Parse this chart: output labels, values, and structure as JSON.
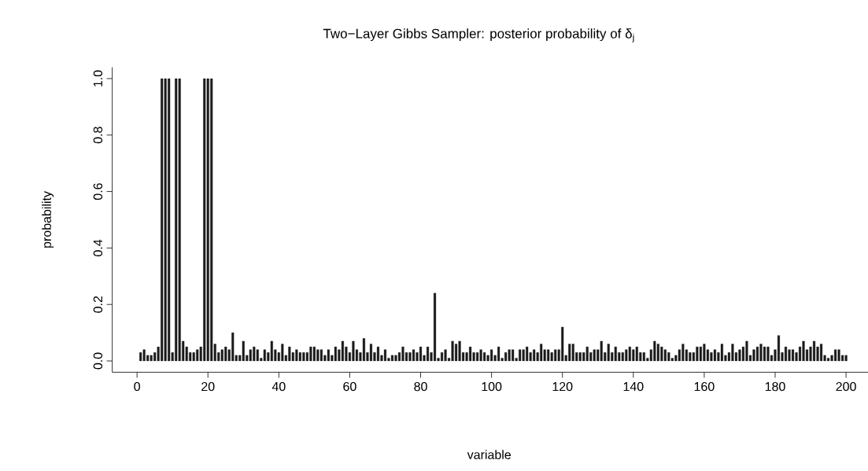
{
  "chart_data": {
    "type": "bar",
    "title": "Two−Layer Gibbs Sampler: posterior probability of  δ$_{j}$",
    "xlabel": "variable",
    "ylabel": "probability",
    "color": "#1a1a1a",
    "x": [
      1,
      2,
      3,
      4,
      5,
      6,
      7,
      8,
      9,
      10,
      11,
      12,
      13,
      14,
      15,
      16,
      17,
      18,
      19,
      20,
      21,
      22,
      23,
      24,
      25,
      26,
      27,
      28,
      29,
      30,
      31,
      32,
      33,
      34,
      35,
      36,
      37,
      38,
      39,
      40,
      41,
      42,
      43,
      44,
      45,
      46,
      47,
      48,
      49,
      50,
      51,
      52,
      53,
      54,
      55,
      56,
      57,
      58,
      59,
      60,
      61,
      62,
      63,
      64,
      65,
      66,
      67,
      68,
      69,
      70,
      71,
      72,
      73,
      74,
      75,
      76,
      77,
      78,
      79,
      80,
      81,
      82,
      83,
      84,
      85,
      86,
      87,
      88,
      89,
      90,
      91,
      92,
      93,
      94,
      95,
      96,
      97,
      98,
      99,
      100,
      101,
      102,
      103,
      104,
      105,
      106,
      107,
      108,
      109,
      110,
      111,
      112,
      113,
      114,
      115,
      116,
      117,
      118,
      119,
      120,
      121,
      122,
      123,
      124,
      125,
      126,
      127,
      128,
      129,
      130,
      131,
      132,
      133,
      134,
      135,
      136,
      137,
      138,
      139,
      140,
      141,
      142,
      143,
      144,
      145,
      146,
      147,
      148,
      149,
      150,
      151,
      152,
      153,
      154,
      155,
      156,
      157,
      158,
      159,
      160,
      161,
      162,
      163,
      164,
      165,
      166,
      167,
      168,
      169,
      170,
      171,
      172,
      173,
      174,
      175,
      176,
      177,
      178,
      179,
      180,
      181,
      182,
      183,
      184,
      185,
      186,
      187,
      188,
      189,
      190,
      191,
      192,
      193,
      194,
      195,
      196,
      197,
      198,
      199,
      200
    ],
    "values": [
      0.03,
      0.04,
      0.02,
      0.02,
      0.03,
      0.05,
      1,
      1,
      1,
      0.03,
      1,
      1,
      0.07,
      0.05,
      0.03,
      0.03,
      0.04,
      0.05,
      1,
      1,
      1,
      0.06,
      0.03,
      0.04,
      0.05,
      0.04,
      0.1,
      0.02,
      0.02,
      0.07,
      0.02,
      0.04,
      0.05,
      0.04,
      0.01,
      0.04,
      0.03,
      0.07,
      0.04,
      0.03,
      0.06,
      0.02,
      0.05,
      0.03,
      0.04,
      0.03,
      0.03,
      0.03,
      0.05,
      0.05,
      0.04,
      0.04,
      0.02,
      0.04,
      0.02,
      0.05,
      0.04,
      0.07,
      0.05,
      0.03,
      0.07,
      0.04,
      0.03,
      0.08,
      0.03,
      0.06,
      0.03,
      0.05,
      0.02,
      0.04,
      0.01,
      0.02,
      0.02,
      0.03,
      0.05,
      0.03,
      0.03,
      0.04,
      0.03,
      0.05,
      0.02,
      0.05,
      0.03,
      0.24,
      0.01,
      0.03,
      0.04,
      0.01,
      0.07,
      0.06,
      0.07,
      0.03,
      0.03,
      0.05,
      0.03,
      0.03,
      0.04,
      0.03,
      0.02,
      0.04,
      0.02,
      0.05,
      0.01,
      0.03,
      0.04,
      0.04,
      0.01,
      0.04,
      0.04,
      0.05,
      0.03,
      0.04,
      0.03,
      0.06,
      0.04,
      0.04,
      0.03,
      0.04,
      0.04,
      0.12,
      0.02,
      0.06,
      0.06,
      0.03,
      0.03,
      0.03,
      0.05,
      0.03,
      0.04,
      0.04,
      0.07,
      0.03,
      0.06,
      0.03,
      0.05,
      0.03,
      0.03,
      0.04,
      0.05,
      0.04,
      0.05,
      0.03,
      0.03,
      0.01,
      0.04,
      0.07,
      0.06,
      0.05,
      0.04,
      0.03,
      0.01,
      0.02,
      0.04,
      0.06,
      0.04,
      0.03,
      0.03,
      0.05,
      0.05,
      0.06,
      0.04,
      0.03,
      0.04,
      0.03,
      0.06,
      0.02,
      0.03,
      0.06,
      0.03,
      0.04,
      0.05,
      0.07,
      0.02,
      0.04,
      0.05,
      0.06,
      0.05,
      0.05,
      0.02,
      0.04,
      0.09,
      0.03,
      0.05,
      0.04,
      0.04,
      0.03,
      0.05,
      0.07,
      0.04,
      0.05,
      0.07,
      0.05,
      0.06,
      0.02,
      0.01,
      0.02,
      0.04,
      0.04,
      0.02,
      0.02
    ],
    "xlim": [
      -7,
      207
    ],
    "ylim": [
      -0.04,
      1.04
    ],
    "xticks": [
      0,
      20,
      40,
      60,
      80,
      100,
      120,
      140,
      160,
      180,
      200
    ],
    "yticks": [
      {
        "value": 0,
        "label": "0.0"
      },
      {
        "value": 0.2,
        "label": "0.2"
      },
      {
        "value": 0.4,
        "label": "0.4"
      },
      {
        "value": 0.6,
        "label": "0.6"
      },
      {
        "value": 0.8,
        "label": "0.8"
      },
      {
        "value": 1,
        "label": "1.0"
      }
    ]
  }
}
